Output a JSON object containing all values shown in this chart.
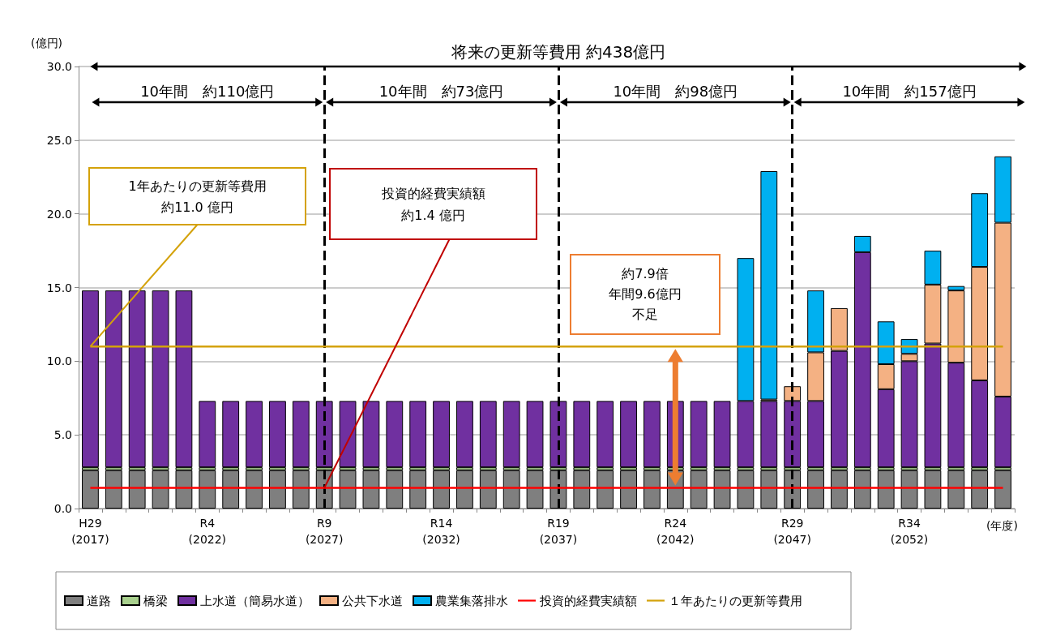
{
  "chart_data": {
    "type": "bar",
    "stacked": true,
    "ylabel": "(億円)",
    "xlabel": "(年度)",
    "categories": [
      "H29\n(2017)",
      null,
      null,
      null,
      null,
      "R4\n(2022)",
      null,
      null,
      null,
      null,
      "R9\n(2027)",
      null,
      null,
      null,
      null,
      "R14\n(2032)",
      null,
      null,
      null,
      null,
      "R19\n(2037)",
      null,
      null,
      null,
      null,
      "R24\n(2042)",
      null,
      null,
      null,
      null,
      "R29\n(2047)",
      null,
      null,
      null,
      null,
      "R34\n(2052)",
      null,
      null,
      null,
      null
    ],
    "ylim": [
      0,
      30
    ],
    "yticks": [
      {
        "value": 0,
        "label": "0.0"
      },
      {
        "value": 5,
        "label": "5.0"
      },
      {
        "value": 10,
        "label": "10.0"
      },
      {
        "value": 15,
        "label": "15.0"
      },
      {
        "value": 20,
        "label": "20.0"
      },
      {
        "value": 25,
        "label": "25.0"
      },
      {
        "value": 30,
        "label": "30.0"
      }
    ],
    "grid": "y",
    "legend": "bottom",
    "marker": "none",
    "series": [
      {
        "name": "道路",
        "color": "#7f7f7f",
        "values": [
          2.6,
          2.6,
          2.6,
          2.6,
          2.6,
          2.6,
          2.6,
          2.6,
          2.6,
          2.6,
          2.6,
          2.6,
          2.6,
          2.6,
          2.6,
          2.6,
          2.6,
          2.6,
          2.6,
          2.6,
          2.6,
          2.6,
          2.6,
          2.6,
          2.6,
          2.6,
          2.6,
          2.6,
          2.6,
          2.6,
          2.6,
          2.6,
          2.6,
          2.6,
          2.6,
          2.6,
          2.6,
          2.6,
          2.6,
          2.6
        ]
      },
      {
        "name": "橋梁",
        "color": "#a9d18e",
        "values": [
          0.2,
          0.2,
          0.2,
          0.2,
          0.2,
          0.2,
          0.2,
          0.2,
          0.2,
          0.2,
          0.2,
          0.2,
          0.2,
          0.2,
          0.2,
          0.2,
          0.2,
          0.2,
          0.2,
          0.2,
          0.2,
          0.2,
          0.2,
          0.2,
          0.2,
          0.2,
          0.2,
          0.2,
          0.2,
          0.2,
          0.2,
          0.2,
          0.2,
          0.2,
          0.2,
          0.2,
          0.2,
          0.2,
          0.2,
          0.2
        ]
      },
      {
        "name": "上水道（簡易水道）",
        "color": "#7030a0",
        "values": [
          12.0,
          12.0,
          12.0,
          12.0,
          12.0,
          4.5,
          4.5,
          4.5,
          4.5,
          4.5,
          4.5,
          4.5,
          4.5,
          4.5,
          4.5,
          4.5,
          4.5,
          4.5,
          4.5,
          4.5,
          4.5,
          4.5,
          4.5,
          4.5,
          4.5,
          4.5,
          4.5,
          4.5,
          4.5,
          4.5,
          4.5,
          4.5,
          7.9,
          14.6,
          5.3,
          7.2,
          8.4,
          7.1,
          5.9,
          4.8
        ]
      },
      {
        "name": "公共下水道",
        "color": "#f4b183",
        "values": [
          null,
          null,
          null,
          null,
          null,
          null,
          null,
          null,
          null,
          null,
          null,
          null,
          null,
          null,
          null,
          null,
          null,
          null,
          null,
          null,
          null,
          null,
          null,
          null,
          null,
          null,
          null,
          null,
          null,
          0.1,
          1.0,
          3.3,
          2.9,
          null,
          1.7,
          0.5,
          4.0,
          4.9,
          7.7,
          11.8
        ]
      },
      {
        "name": "農業集落排水",
        "color": "#00b0f0",
        "values": [
          null,
          null,
          null,
          null,
          null,
          null,
          null,
          null,
          null,
          null,
          null,
          null,
          null,
          null,
          null,
          null,
          null,
          null,
          null,
          null,
          null,
          null,
          null,
          null,
          null,
          null,
          null,
          null,
          9.7,
          15.5,
          null,
          4.2,
          null,
          1.1,
          2.9,
          1.0,
          2.3,
          0.3,
          5.0,
          4.5
        ]
      },
      {
        "name": "投資的経費実績額",
        "type": "line",
        "color": "#ff0000",
        "values": [
          1.4,
          1.4,
          1.4,
          1.4,
          1.4,
          1.4,
          1.4,
          1.4,
          1.4,
          1.4,
          1.4,
          1.4,
          1.4,
          1.4,
          1.4,
          1.4,
          1.4,
          1.4,
          1.4,
          1.4,
          1.4,
          1.4,
          1.4,
          1.4,
          1.4,
          1.4,
          1.4,
          1.4,
          1.4,
          1.4,
          1.4,
          1.4,
          1.4,
          1.4,
          1.4,
          1.4,
          1.4,
          1.4,
          1.4,
          1.4
        ]
      },
      {
        "name": "１年あたりの更新等費用",
        "type": "line",
        "color": "#d4a20a",
        "values": [
          11.0,
          11.0,
          11.0,
          11.0,
          11.0,
          11.0,
          11.0,
          11.0,
          11.0,
          11.0,
          11.0,
          11.0,
          11.0,
          11.0,
          11.0,
          11.0,
          11.0,
          11.0,
          11.0,
          11.0,
          11.0,
          11.0,
          11.0,
          11.0,
          11.0,
          11.0,
          11.0,
          11.0,
          11.0,
          11.0,
          11.0,
          11.0,
          11.0,
          11.0,
          11.0,
          11.0,
          11.0,
          11.0,
          11.0,
          11.0
        ]
      }
    ],
    "ref_lines": [
      {
        "axis": "x",
        "value": "R9\n(2027)",
        "color": "#000000",
        "line_style": "dashed"
      },
      {
        "axis": "x",
        "value": "R19\n(2037)",
        "color": "#000000",
        "line_style": "dashed"
      },
      {
        "axis": "x",
        "value": "R29\n(2047)",
        "color": "#000000",
        "line_style": "dashed"
      }
    ],
    "annotations": [
      "将来の更新等費用 約438億円",
      "10年間　約110億円",
      "10年間　約73億円",
      "10年間　約98億円",
      "10年間　約157億円",
      "1年あたりの更新等費用",
      {
        "text": "約11.0 億円",
        "x": "H29\n(2017)",
        "y": 11.0
      },
      "投資的経費実績額",
      {
        "text": "約1.4 億円",
        "x": "R9\n(2027)",
        "y": 1.4
      },
      "約7.9倍",
      "年間9.6億円",
      "不足"
    ]
  }
}
